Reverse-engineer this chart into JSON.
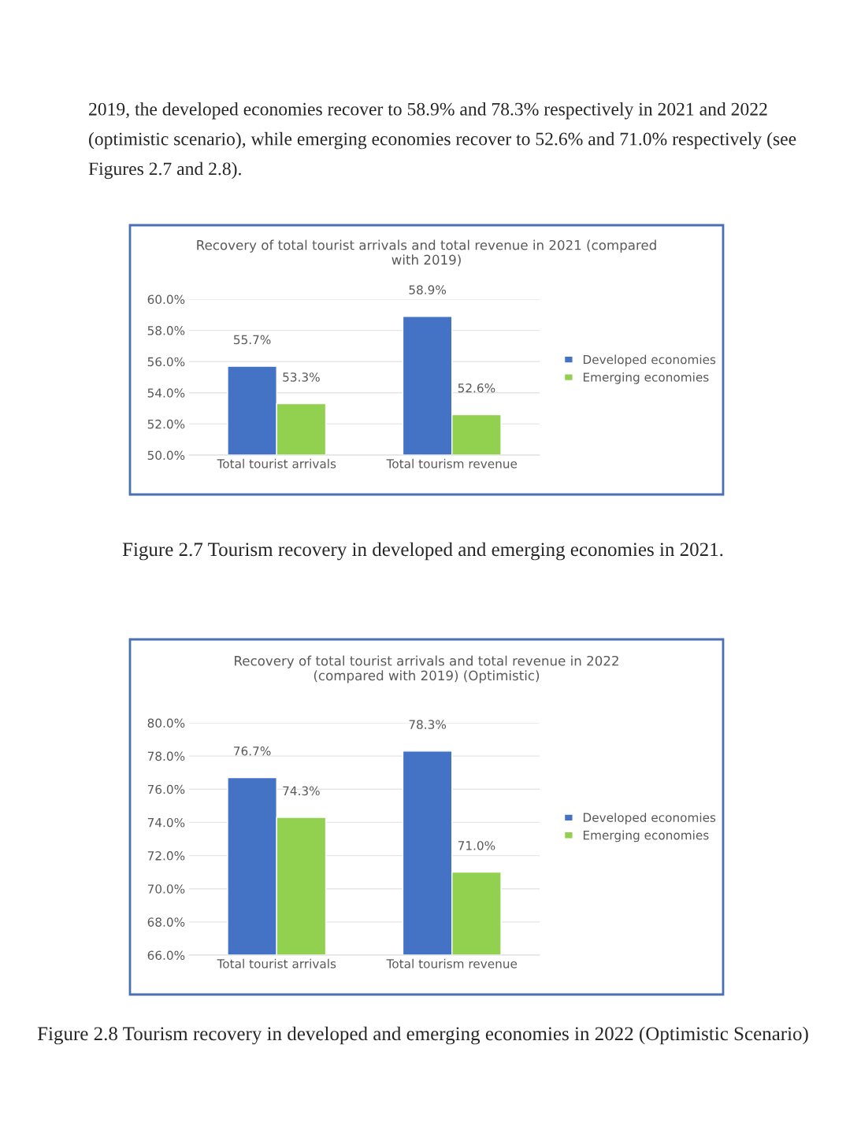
{
  "chart_data": [
    {
      "type": "bar",
      "title": "Recovery of total tourist arrivals and total revenue in 2021 (compared\nwith 2019)",
      "categories": [
        "Total tourist arrivals",
        "Total tourism revenue"
      ],
      "series": [
        {
          "name": "Developed economies",
          "color": "#4472c4",
          "values": [
            55.7,
            58.9
          ],
          "value_labels": [
            "55.7%",
            "58.9%"
          ]
        },
        {
          "name": "Emerging economies",
          "color": "#92d050",
          "values": [
            53.3,
            52.6
          ],
          "value_labels": [
            "53.3%",
            "52.6%"
          ]
        }
      ],
      "ylim": [
        50,
        60
      ],
      "yticks": [
        {
          "value": 50,
          "label": "50.0%"
        },
        {
          "value": 52,
          "label": "52.0%"
        },
        {
          "value": 54,
          "label": "54.0%"
        },
        {
          "value": 56,
          "label": "56.0%"
        },
        {
          "value": 58,
          "label": "58.0%"
        },
        {
          "value": 60,
          "label": "60.0%"
        }
      ],
      "grid": "y",
      "legend": "right",
      "annotations": [
        "2019, the developed economies recover to 58.9% and 78.3% respectively in 2021 and 2022 (optimistic scenario), while emerging economies recover to 52.6% and 71.0% respectively (see Figures 2.7 and 2.8).",
        "Figure 2.7 Tourism recovery in developed and emerging economies in 2021."
      ]
    },
    {
      "type": "bar",
      "title": "Recovery of total tourist arrivals and total revenue in 2022\n(compared with 2019) (Optimistic)",
      "categories": [
        "Total tourist arrivals",
        "Total tourism revenue"
      ],
      "series": [
        {
          "name": "Developed economies",
          "color": "#4472c4",
          "values": [
            76.7,
            78.3
          ],
          "value_labels": [
            "76.7%",
            "78.3%"
          ]
        },
        {
          "name": "Emerging economies",
          "color": "#92d050",
          "values": [
            74.3,
            71.0
          ],
          "value_labels": [
            "74.3%",
            "71.0%"
          ]
        }
      ],
      "ylim": [
        66,
        80
      ],
      "yticks": [
        {
          "value": 66,
          "label": "66.0%"
        },
        {
          "value": 68,
          "label": "68.0%"
        },
        {
          "value": 70,
          "label": "70.0%"
        },
        {
          "value": 72,
          "label": "72.0%"
        },
        {
          "value": 74,
          "label": "74.0%"
        },
        {
          "value": 76,
          "label": "76.0%"
        },
        {
          "value": 78,
          "label": "78.0%"
        },
        {
          "value": 80,
          "label": "80.0%"
        }
      ],
      "grid": "y",
      "legend": "right",
      "annotations": [
        "Figure 2.8 Tourism recovery in developed and emerging economies in 2022 (Optimistic Scenario)"
      ]
    }
  ]
}
